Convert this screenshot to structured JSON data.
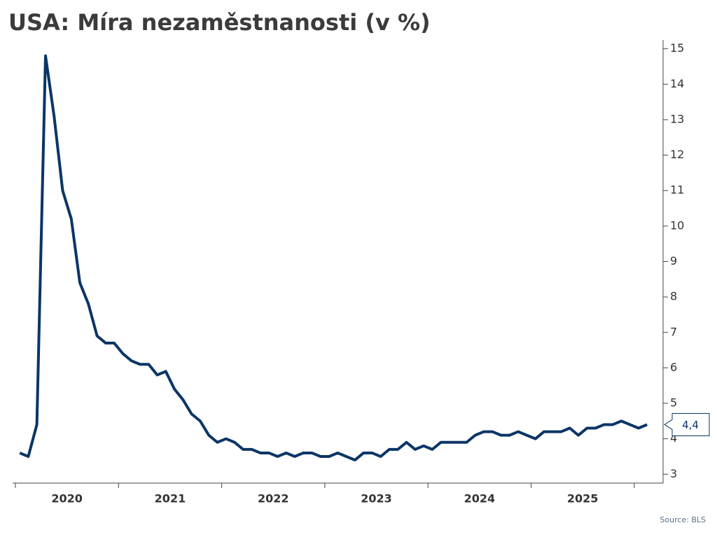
{
  "chart_data": {
    "type": "line",
    "title": "USA: Míra nezaměstnanosti (v %)",
    "source": "Source: BLS",
    "x": [
      2020.042,
      2020.125,
      2020.208,
      2020.292,
      2020.375,
      2020.458,
      2020.542,
      2020.625,
      2020.708,
      2020.792,
      2020.875,
      2020.958,
      2021.042,
      2021.125,
      2021.208,
      2021.292,
      2021.375,
      2021.458,
      2021.542,
      2021.625,
      2021.708,
      2021.792,
      2021.875,
      2021.958,
      2022.042,
      2022.125,
      2022.208,
      2022.292,
      2022.375,
      2022.458,
      2022.542,
      2022.625,
      2022.708,
      2022.792,
      2022.875,
      2022.958,
      2023.042,
      2023.125,
      2023.208,
      2023.292,
      2023.375,
      2023.458,
      2023.542,
      2023.625,
      2023.708,
      2023.792,
      2023.875,
      2023.958,
      2024.042,
      2024.125,
      2024.208,
      2024.292,
      2024.375,
      2024.458,
      2024.542,
      2024.625,
      2024.708,
      2024.792,
      2024.875,
      2024.958,
      2025.042,
      2025.125,
      2025.208,
      2025.292,
      2025.375,
      2025.458,
      2025.542,
      2025.625,
      2025.708,
      2025.792,
      2025.875,
      2025.958,
      2026.042,
      2026.125
    ],
    "series": [
      {
        "name": "USA",
        "color": "#0b3566",
        "values": [
          3.6,
          3.5,
          4.4,
          14.8,
          13.1,
          11.0,
          10.2,
          8.4,
          7.8,
          6.9,
          6.7,
          6.7,
          6.4,
          6.2,
          6.1,
          6.1,
          5.8,
          5.9,
          5.4,
          5.1,
          4.7,
          4.5,
          4.1,
          3.9,
          4.0,
          3.9,
          3.7,
          3.7,
          3.6,
          3.6,
          3.5,
          3.6,
          3.5,
          3.6,
          3.6,
          3.5,
          3.5,
          3.6,
          3.5,
          3.4,
          3.6,
          3.6,
          3.5,
          3.7,
          3.7,
          3.9,
          3.7,
          3.8,
          3.7,
          3.9,
          3.9,
          3.9,
          3.9,
          4.1,
          4.2,
          4.2,
          4.1,
          4.1,
          4.2,
          4.1,
          4.0,
          4.2,
          4.2,
          4.2,
          4.3,
          4.1,
          4.3,
          4.3,
          4.4,
          4.4,
          4.5,
          4.4,
          4.3,
          4.4
        ],
        "value_labels": [
          null,
          null,
          null,
          null,
          null,
          null,
          null,
          null,
          null,
          null,
          null,
          null,
          null,
          null,
          null,
          null,
          null,
          null,
          null,
          null,
          null,
          null,
          null,
          null,
          null,
          null,
          null,
          null,
          null,
          null,
          null,
          null,
          null,
          null,
          null,
          null,
          null,
          null,
          null,
          null,
          null,
          null,
          null,
          null,
          null,
          null,
          null,
          null,
          null,
          null,
          null,
          null,
          null,
          null,
          null,
          null,
          null,
          null,
          null,
          null,
          null,
          null,
          null,
          null,
          null,
          null,
          null,
          null,
          null,
          null,
          null,
          null,
          null,
          "4,4"
        ]
      }
    ],
    "xlim": [
      2020,
      2026.2
    ],
    "xticks": [
      2020,
      2021,
      2022,
      2023,
      2024,
      2025,
      2026
    ],
    "xlabels": [
      {
        "value": 2020.5,
        "label": "2020"
      },
      {
        "value": 2021.5,
        "label": "2021"
      },
      {
        "value": 2022.5,
        "label": "2022"
      },
      {
        "value": 2023.5,
        "label": "2023"
      },
      {
        "value": 2024.5,
        "label": "2024"
      },
      {
        "value": 2025.5,
        "label": "2025"
      }
    ],
    "ylim": [
      2.75,
      15.25
    ],
    "yticks": [
      3,
      4,
      5,
      6,
      7,
      8,
      9,
      10,
      11,
      12,
      13,
      14,
      15
    ],
    "grid": false
  }
}
